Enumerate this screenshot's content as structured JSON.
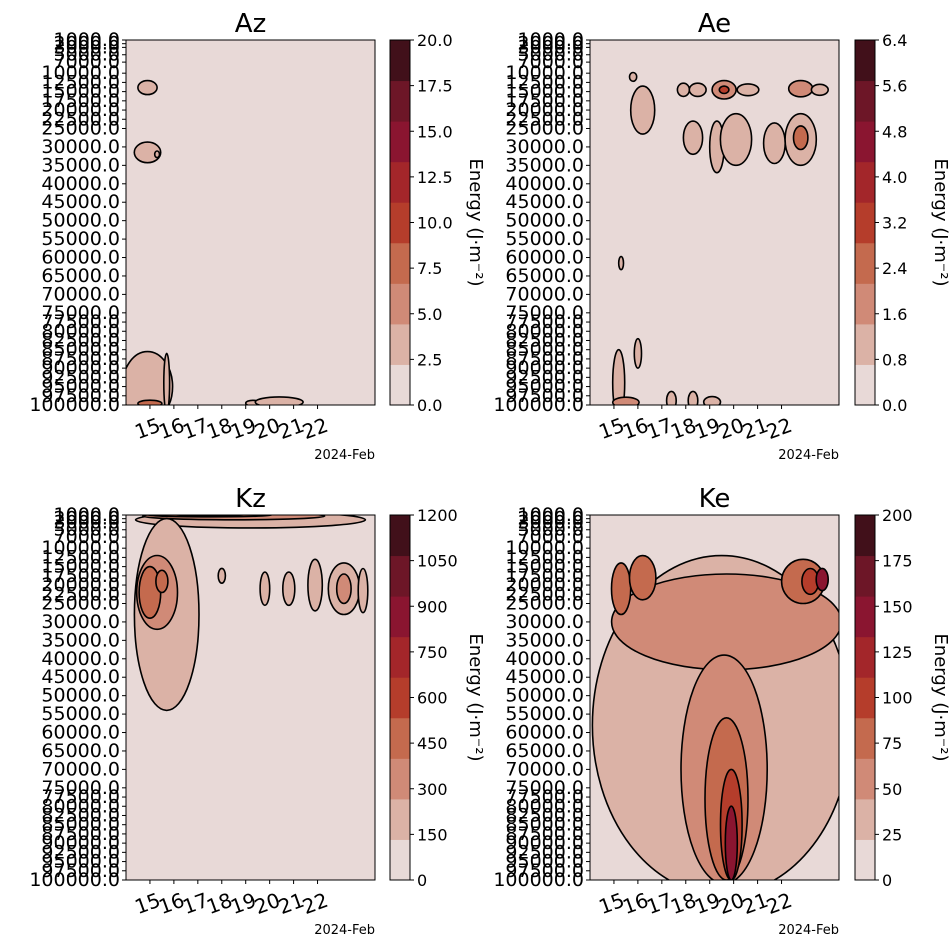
{
  "colors": {
    "levels": [
      "#e8d9d7",
      "#dbb2a6",
      "#d08a77",
      "#c46a4e",
      "#b53d2b",
      "#a3262a",
      "#8a1530",
      "#6d1627",
      "#41101a"
    ],
    "contour_line": "#000000",
    "background": "#ffffff"
  },
  "chart_data": [
    {
      "type": "heatmap",
      "title": "Az",
      "xlabel": "",
      "x_offset_label": "2024-Feb",
      "x_ticks": [
        "15",
        "16",
        "17",
        "18",
        "19",
        "20",
        "21",
        "22"
      ],
      "y_ticks": [
        "1000.0",
        "2000.0",
        "3000.0",
        "5000.0",
        "7000.0",
        "10000.0",
        "12500.0",
        "15000.0",
        "17500.0",
        "20000.0",
        "22500.0",
        "25000.0",
        "30000.0",
        "35000.0",
        "40000.0",
        "45000.0",
        "50000.0",
        "55000.0",
        "60000.0",
        "65000.0",
        "70000.0",
        "75000.0",
        "77500.0",
        "80000.0",
        "82500.0",
        "85000.0",
        "87500.0",
        "90000.0",
        "92500.0",
        "95000.0",
        "97500.0",
        "100000.0"
      ],
      "colorbar": {
        "label": "Energy (J·m⁻²)",
        "ticks": [
          "0.0",
          "2.5",
          "5.0",
          "7.5",
          "10.0",
          "12.5",
          "15.0",
          "17.5",
          "20.0"
        ],
        "range": [
          0,
          20
        ]
      },
      "features": [
        {
          "t": 2.9,
          "p": 13900,
          "dt": 0.4,
          "dp": 1900,
          "level": 1
        },
        {
          "t": 2.9,
          "p": 31500,
          "dt": 0.55,
          "dp": 2800,
          "level": 1
        },
        {
          "t": 3.3,
          "p": 32000,
          "dt": 0.1,
          "dp": 900,
          "level": 1
        },
        {
          "t": 2.9,
          "p": 95000,
          "dt": 1.05,
          "dp": 9500,
          "level": 1
        },
        {
          "t": 3.7,
          "p": 94000,
          "dt": 0.12,
          "dp": 8000,
          "level": 1
        },
        {
          "t": 7.3,
          "p": 99500,
          "dt": 0.3,
          "dp": 800,
          "level": 1
        },
        {
          "t": 8.4,
          "p": 99200,
          "dt": 1.0,
          "dp": 1400,
          "level": 1
        },
        {
          "t": 3.0,
          "p": 99600,
          "dt": 0.5,
          "dp": 900,
          "level": 3
        }
      ]
    },
    {
      "type": "heatmap",
      "title": "Ae",
      "xlabel": "",
      "x_offset_label": "2024-Feb",
      "x_ticks": [
        "15",
        "16",
        "17",
        "18",
        "19",
        "20",
        "21",
        "22"
      ],
      "y_ticks": [
        "1000.0",
        "2000.0",
        "3000.0",
        "5000.0",
        "7000.0",
        "10000.0",
        "12500.0",
        "15000.0",
        "17500.0",
        "20000.0",
        "22500.0",
        "25000.0",
        "30000.0",
        "35000.0",
        "40000.0",
        "45000.0",
        "50000.0",
        "55000.0",
        "60000.0",
        "65000.0",
        "70000.0",
        "75000.0",
        "77500.0",
        "80000.0",
        "82500.0",
        "85000.0",
        "87500.0",
        "90000.0",
        "92500.0",
        "95000.0",
        "97500.0",
        "100000.0"
      ],
      "colorbar": {
        "label": "Energy (J·m⁻²)",
        "ticks": [
          "0.0",
          "0.8",
          "1.6",
          "2.4",
          "3.2",
          "4.0",
          "4.8",
          "5.6",
          "6.4"
        ],
        "range": [
          0,
          6.4
        ]
      },
      "features": [
        {
          "t": 3.8,
          "p": 11000,
          "dt": 0.15,
          "dp": 1200,
          "level": 1
        },
        {
          "t": 4.2,
          "p": 20000,
          "dt": 0.5,
          "dp": 6500,
          "level": 1
        },
        {
          "t": 5.9,
          "p": 14500,
          "dt": 0.25,
          "dp": 1800,
          "level": 1
        },
        {
          "t": 6.5,
          "p": 14500,
          "dt": 0.35,
          "dp": 1800,
          "level": 1
        },
        {
          "t": 7.6,
          "p": 14500,
          "dt": 0.5,
          "dp": 2500,
          "level": 2
        },
        {
          "t": 7.6,
          "p": 14500,
          "dt": 0.2,
          "dp": 1000,
          "level": 4
        },
        {
          "t": 8.6,
          "p": 14500,
          "dt": 0.45,
          "dp": 1600,
          "level": 1
        },
        {
          "t": 10.8,
          "p": 14200,
          "dt": 0.5,
          "dp": 2200,
          "level": 2
        },
        {
          "t": 11.6,
          "p": 14500,
          "dt": 0.35,
          "dp": 1500,
          "level": 1
        },
        {
          "t": 6.3,
          "p": 27500,
          "dt": 0.4,
          "dp": 4500,
          "level": 1
        },
        {
          "t": 7.3,
          "p": 30000,
          "dt": 0.3,
          "dp": 7000,
          "level": 1
        },
        {
          "t": 8.1,
          "p": 28000,
          "dt": 0.65,
          "dp": 7000,
          "level": 1
        },
        {
          "t": 9.7,
          "p": 29000,
          "dt": 0.45,
          "dp": 5500,
          "level": 1
        },
        {
          "t": 10.8,
          "p": 28000,
          "dt": 0.65,
          "dp": 7000,
          "level": 1
        },
        {
          "t": 10.8,
          "p": 27500,
          "dt": 0.3,
          "dp": 3200,
          "level": 3
        },
        {
          "t": 3.3,
          "p": 61500,
          "dt": 0.1,
          "dp": 1800,
          "level": 1
        },
        {
          "t": 3.2,
          "p": 94000,
          "dt": 0.25,
          "dp": 9000,
          "level": 1
        },
        {
          "t": 4.0,
          "p": 86000,
          "dt": 0.15,
          "dp": 4000,
          "level": 1
        },
        {
          "t": 3.5,
          "p": 99300,
          "dt": 0.55,
          "dp": 1400,
          "level": 2
        },
        {
          "t": 5.4,
          "p": 98800,
          "dt": 0.2,
          "dp": 2500,
          "level": 1
        },
        {
          "t": 6.3,
          "p": 98800,
          "dt": 0.2,
          "dp": 2500,
          "level": 1
        },
        {
          "t": 7.1,
          "p": 99200,
          "dt": 0.35,
          "dp": 1500,
          "level": 1
        }
      ]
    },
    {
      "type": "heatmap",
      "title": "Kz",
      "xlabel": "",
      "x_offset_label": "2024-Feb",
      "x_ticks": [
        "15",
        "16",
        "17",
        "18",
        "19",
        "20",
        "21",
        "22"
      ],
      "y_ticks": [
        "1000.0",
        "2000.0",
        "3000.0",
        "5000.0",
        "7000.0",
        "10000.0",
        "12500.0",
        "15000.0",
        "17500.0",
        "20000.0",
        "22500.0",
        "25000.0",
        "30000.0",
        "35000.0",
        "40000.0",
        "45000.0",
        "50000.0",
        "55000.0",
        "60000.0",
        "65000.0",
        "70000.0",
        "75000.0",
        "77500.0",
        "80000.0",
        "82500.0",
        "85000.0",
        "87500.0",
        "90000.0",
        "92500.0",
        "95000.0",
        "97500.0",
        "100000.0"
      ],
      "colorbar": {
        "label": "Energy (J·m⁻²)",
        "ticks": [
          "0",
          "150",
          "300",
          "450",
          "600",
          "750",
          "900",
          "1050",
          "1200"
        ],
        "range": [
          0,
          1200
        ]
      },
      "features": [
        {
          "t": 7.2,
          "p": 2300,
          "dt": 4.8,
          "dp": 2200,
          "level": 1
        },
        {
          "t": 6.5,
          "p": 1300,
          "dt": 3.8,
          "dp": 1000,
          "level": 2
        },
        {
          "t": 5.5,
          "p": 1000,
          "dt": 2.6,
          "dp": 500,
          "level": 3
        },
        {
          "t": 5.5,
          "p": 1000,
          "dt": 1.4,
          "dp": 250,
          "level": 4
        },
        {
          "t": 3.7,
          "p": 28000,
          "dt": 1.35,
          "dp": 26000,
          "level": 1
        },
        {
          "t": 3.3,
          "p": 22000,
          "dt": 0.85,
          "dp": 10000,
          "level": 2
        },
        {
          "t": 3.0,
          "p": 22000,
          "dt": 0.45,
          "dp": 7000,
          "level": 3
        },
        {
          "t": 3.5,
          "p": 19000,
          "dt": 0.25,
          "dp": 3000,
          "level": 3
        },
        {
          "t": 6.0,
          "p": 17500,
          "dt": 0.15,
          "dp": 2000,
          "level": 1
        },
        {
          "t": 7.8,
          "p": 21000,
          "dt": 0.2,
          "dp": 4500,
          "level": 1
        },
        {
          "t": 8.8,
          "p": 21000,
          "dt": 0.25,
          "dp": 4500,
          "level": 1
        },
        {
          "t": 9.9,
          "p": 20000,
          "dt": 0.3,
          "dp": 7000,
          "level": 1
        },
        {
          "t": 11.1,
          "p": 21000,
          "dt": 0.65,
          "dp": 7000,
          "level": 1
        },
        {
          "t": 11.1,
          "p": 21000,
          "dt": 0.3,
          "dp": 4000,
          "level": 2
        },
        {
          "t": 11.9,
          "p": 21500,
          "dt": 0.2,
          "dp": 6000,
          "level": 1
        }
      ]
    },
    {
      "type": "heatmap",
      "title": "Ke",
      "xlabel": "",
      "x_offset_label": "2024-Feb",
      "x_ticks": [
        "15",
        "16",
        "17",
        "18",
        "19",
        "20",
        "21",
        "22"
      ],
      "y_ticks": [
        "1000.0",
        "2000.0",
        "3000.0",
        "5000.0",
        "7000.0",
        "10000.0",
        "12500.0",
        "15000.0",
        "17500.0",
        "20000.0",
        "22500.0",
        "25000.0",
        "30000.0",
        "35000.0",
        "40000.0",
        "45000.0",
        "50000.0",
        "55000.0",
        "60000.0",
        "65000.0",
        "70000.0",
        "75000.0",
        "77500.0",
        "80000.0",
        "82500.0",
        "85000.0",
        "87500.0",
        "90000.0",
        "92500.0",
        "95000.0",
        "97500.0",
        "100000.0"
      ],
      "colorbar": {
        "label": "Energy (J·m⁻²)",
        "ticks": [
          "0",
          "25",
          "50",
          "75",
          "100",
          "125",
          "150",
          "175",
          "200"
        ],
        "range": [
          0,
          200
        ]
      },
      "features": [
        {
          "t": 7.5,
          "p": 58000,
          "dt": 5.4,
          "dp": 46000,
          "level": 1
        },
        {
          "t": 7.7,
          "p": 30000,
          "dt": 4.8,
          "dp": 13000,
          "level": 2
        },
        {
          "t": 7.6,
          "p": 70000,
          "dt": 1.8,
          "dp": 31000,
          "level": 2
        },
        {
          "t": 7.7,
          "p": 78000,
          "dt": 0.9,
          "dp": 22000,
          "level": 3
        },
        {
          "t": 7.9,
          "p": 85000,
          "dt": 0.45,
          "dp": 15000,
          "level": 4
        },
        {
          "t": 7.9,
          "p": 90000,
          "dt": 0.25,
          "dp": 10000,
          "level": 6
        },
        {
          "t": 3.3,
          "p": 21000,
          "dt": 0.4,
          "dp": 7000,
          "level": 3
        },
        {
          "t": 4.2,
          "p": 18000,
          "dt": 0.55,
          "dp": 6000,
          "level": 3
        },
        {
          "t": 10.9,
          "p": 19000,
          "dt": 0.9,
          "dp": 6000,
          "level": 3
        },
        {
          "t": 11.2,
          "p": 19000,
          "dt": 0.35,
          "dp": 3500,
          "level": 4
        },
        {
          "t": 11.7,
          "p": 18500,
          "dt": 0.25,
          "dp": 3000,
          "level": 6
        }
      ]
    }
  ]
}
